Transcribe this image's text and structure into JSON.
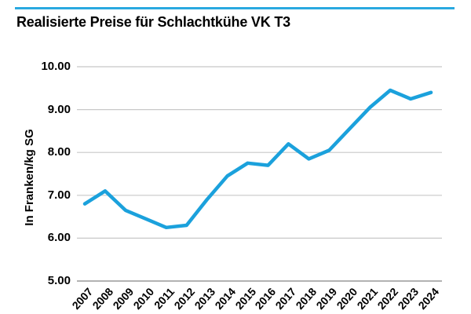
{
  "header": {
    "title": "Realisierte Preise für Schlachtkühe VK T3"
  },
  "colors": {
    "accent_blue": "#1ba1dc",
    "top_rule_blue": "#29a9e0",
    "gridline_gray": "#c8c8c8",
    "axis_gray": "#b2b2b2",
    "text_black": "#000000",
    "background": "#ffffff"
  },
  "chart_data": {
    "type": "line",
    "title": "Realisierte Preise für Schlachtkühe VK T3",
    "xlabel": "",
    "ylabel": "In Franken/kg SG",
    "categories": [
      "2007",
      "2008",
      "2009",
      "2010",
      "2011",
      "2012",
      "2013",
      "2014",
      "2015",
      "2016",
      "2017",
      "2018",
      "2019",
      "2020",
      "2021",
      "2022",
      "2023",
      "2024"
    ],
    "series": [
      {
        "name": "Realisierte Preise Schlachtkühe VK T3",
        "values": [
          6.8,
          7.1,
          6.65,
          6.45,
          6.25,
          6.3,
          6.9,
          7.45,
          7.75,
          7.7,
          8.2,
          7.85,
          8.05,
          8.55,
          9.05,
          9.45,
          9.25,
          9.4
        ]
      }
    ],
    "ylim": [
      5.0,
      10.0
    ],
    "y_tick_labels": [
      "10.00",
      "9.00",
      "8.00",
      "7.00",
      "6.00",
      "5.00"
    ],
    "grid": "horizontal-only",
    "legend_position": "none",
    "line_color": "#1ba1dc"
  }
}
